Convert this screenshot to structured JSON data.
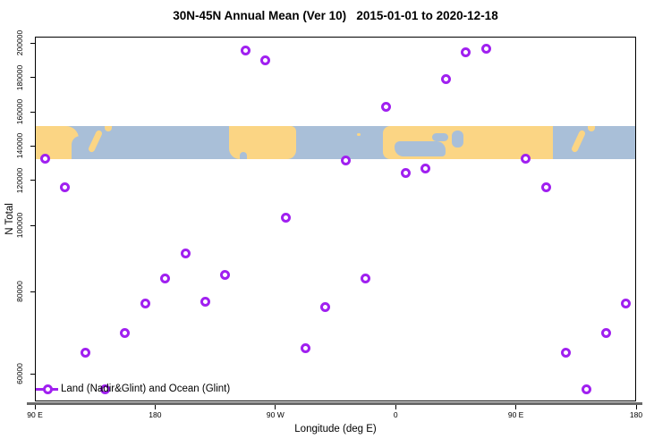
{
  "title": "30N-45N Annual Mean (Ver 10)   2015-01-01 to 2020-12-18",
  "legend": {
    "label": "Land (Nadir&Glint) and Ocean (Glint)"
  },
  "colors": {
    "point": "#A020F0",
    "land": "#FBD584",
    "ocean": "#A9BFD8",
    "axis_thick_line": "#696969"
  },
  "map_band": {
    "description": "world-map strip of the 30N-45N latitude band (land vs ocean)"
  },
  "chart_data": {
    "type": "scatter",
    "title": "30N-45N Annual Mean (Ver 10)   2015-01-01 to 2020-12-18",
    "xlabel": "Longitude (deg E)",
    "ylabel": "N Total",
    "x_axis": {
      "tick_labels": [
        "90 E",
        "180",
        "90 W",
        "0",
        "90 E",
        "180"
      ],
      "tick_axis_lons": [
        90,
        180,
        270,
        360,
        450,
        540
      ],
      "note": "axis spans 450 deg of longitude; data from 90E-180E is plotted again at the right (wrap-around)"
    },
    "y_axis": {
      "tick_labels": [
        "200000",
        "180000",
        "160000",
        "140000",
        "120000",
        "100000",
        "80000",
        "60000"
      ],
      "tick_values": [
        200000,
        180000,
        160000,
        140000,
        120000,
        100000,
        80000,
        60000
      ],
      "nonlinear_spacing": true,
      "grid": false
    },
    "legend_position": "bottom-left",
    "points": [
      {
        "label": "97.5E",
        "axis_lon": 97.5,
        "n_total": 132500
      },
      {
        "label": "112.5E",
        "axis_lon": 112.5,
        "n_total": 117000
      },
      {
        "label": "127.5E",
        "axis_lon": 127.5,
        "n_total": 65200
      },
      {
        "label": "142.5E",
        "axis_lon": 142.5,
        "n_total": 56200
      },
      {
        "label": "157.5E",
        "axis_lon": 157.5,
        "n_total": 69900
      },
      {
        "label": "172.5E",
        "axis_lon": 172.5,
        "n_total": 77000
      },
      {
        "label": "172.5W",
        "axis_lon": 187.5,
        "n_total": 83800
      },
      {
        "label": "157.5W",
        "axis_lon": 202.5,
        "n_total": 91600
      },
      {
        "label": "142.5W",
        "axis_lon": 217.5,
        "n_total": 77600
      },
      {
        "label": "127.5W",
        "axis_lon": 232.5,
        "n_total": 84900
      },
      {
        "label": "112.5W",
        "axis_lon": 247.5,
        "n_total": 195800
      },
      {
        "label": "97.5W",
        "axis_lon": 262.5,
        "n_total": 190100
      },
      {
        "label": "82.5W",
        "axis_lon": 277.5,
        "n_total": 103200
      },
      {
        "label": "67.5W",
        "axis_lon": 292.5,
        "n_total": 66100
      },
      {
        "label": "52.5W",
        "axis_lon": 307.5,
        "n_total": 76100
      },
      {
        "label": "37.5W",
        "axis_lon": 322.5,
        "n_total": 131200
      },
      {
        "label": "22.5W",
        "axis_lon": 337.5,
        "n_total": 83800
      },
      {
        "label": "7.5W",
        "axis_lon": 352.5,
        "n_total": 163100
      },
      {
        "label": "7.5E",
        "axis_lon": 367.5,
        "n_total": 123900
      },
      {
        "label": "22.5E",
        "axis_lon": 382.5,
        "n_total": 126500
      },
      {
        "label": "37.5E",
        "axis_lon": 397.5,
        "n_total": 178800
      },
      {
        "label": "52.5E",
        "axis_lon": 412.5,
        "n_total": 194800
      },
      {
        "label": "67.5E",
        "axis_lon": 427.5,
        "n_total": 196400
      },
      {
        "label": "97.5E (wrap)",
        "axis_lon": 457.5,
        "n_total": 132500,
        "repeat": true
      },
      {
        "label": "112.5E (wrap)",
        "axis_lon": 472.5,
        "n_total": 117000,
        "repeat": true
      },
      {
        "label": "127.5E (wrap)",
        "axis_lon": 487.5,
        "n_total": 65200,
        "repeat": true
      },
      {
        "label": "142.5E (wrap)",
        "axis_lon": 502.5,
        "n_total": 56200,
        "repeat": true
      },
      {
        "label": "157.5E (wrap)",
        "axis_lon": 517.5,
        "n_total": 69900,
        "repeat": true
      },
      {
        "label": "172.5E (wrap)",
        "axis_lon": 532.5,
        "n_total": 77000,
        "repeat": true
      }
    ]
  }
}
